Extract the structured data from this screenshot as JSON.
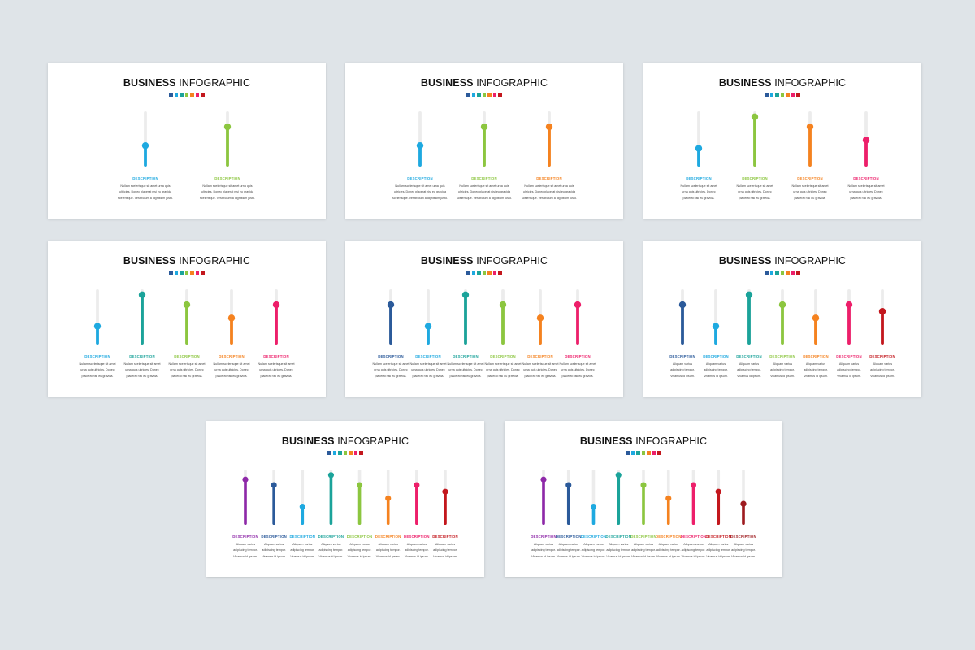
{
  "slide_title_bold": "BUSINESS",
  "slide_title_light": "INFOGRAPHIC",
  "description_label": "DESCRIPTION",
  "palette_swatches": [
    "#2b5a9a",
    "#1ea9e0",
    "#1ba39a",
    "#8cc63f",
    "#f5821f",
    "#ed1f6a",
    "#c3171d"
  ],
  "chart_data": [
    {
      "type": "bar",
      "categories": [
        "DESCRIPTION",
        "DESCRIPTION"
      ],
      "values": [
        38,
        72
      ],
      "colors": [
        "#1ea9e0",
        "#8cc63f"
      ],
      "ylim": [
        0,
        100
      ],
      "desc_lines": [
        "Nullam scelerisque sit amet urna quis",
        "ultricies. Donec placerat nisi eu gravida",
        "scelerisque. Vestibulum a dignissim justo."
      ]
    },
    {
      "type": "bar",
      "categories": [
        "DESCRIPTION",
        "DESCRIPTION",
        "DESCRIPTION"
      ],
      "values": [
        38,
        72,
        72
      ],
      "colors": [
        "#1ea9e0",
        "#8cc63f",
        "#f5821f"
      ],
      "ylim": [
        0,
        100
      ],
      "desc_lines": [
        "Nullam scelerisque sit amet urna quis",
        "ultricies. Donec placerat nisi eu gravida",
        "scelerisque. Vestibulum a dignissim justo."
      ]
    },
    {
      "type": "bar",
      "categories": [
        "DESCRIPTION",
        "DESCRIPTION",
        "DESCRIPTION",
        "DESCRIPTION"
      ],
      "values": [
        33,
        90,
        72,
        48
      ],
      "colors": [
        "#1ea9e0",
        "#8cc63f",
        "#f5821f",
        "#ed1f6a"
      ],
      "ylim": [
        0,
        100
      ],
      "desc_lines": [
        "Nullam scelerisque sit amet",
        "urna quis ultricies. Donec",
        "placerat nisi eu gravida."
      ]
    },
    {
      "type": "bar",
      "categories": [
        "DESCRIPTION",
        "DESCRIPTION",
        "DESCRIPTION",
        "DESCRIPTION",
        "DESCRIPTION"
      ],
      "values": [
        33,
        90,
        72,
        48,
        72
      ],
      "colors": [
        "#1ea9e0",
        "#1ba39a",
        "#8cc63f",
        "#f5821f",
        "#ed1f6a"
      ],
      "ylim": [
        0,
        100
      ],
      "desc_lines": [
        "Nullam scelerisque sit amet",
        "urna quis ultricies. Donec",
        "placerat nisi eu gravida."
      ]
    },
    {
      "type": "bar",
      "categories": [
        "DESCRIPTION",
        "DESCRIPTION",
        "DESCRIPTION",
        "DESCRIPTION",
        "DESCRIPTION",
        "DESCRIPTION"
      ],
      "values": [
        72,
        33,
        90,
        72,
        48,
        72
      ],
      "colors": [
        "#2b5a9a",
        "#1ea9e0",
        "#1ba39a",
        "#8cc63f",
        "#f5821f",
        "#ed1f6a"
      ],
      "ylim": [
        0,
        100
      ],
      "desc_lines": [
        "Nullam scelerisque sit amet",
        "urna quis ultricies. Donec",
        "placerat nisi eu gravida."
      ]
    },
    {
      "type": "bar",
      "categories": [
        "DESCRIPTION",
        "DESCRIPTION",
        "DESCRIPTION",
        "DESCRIPTION",
        "DESCRIPTION",
        "DESCRIPTION",
        "DESCRIPTION"
      ],
      "values": [
        72,
        33,
        90,
        72,
        48,
        72,
        60
      ],
      "colors": [
        "#2b5a9a",
        "#1ea9e0",
        "#1ba39a",
        "#8cc63f",
        "#f5821f",
        "#ed1f6a",
        "#c3171d"
      ],
      "ylim": [
        0,
        100
      ],
      "desc_lines": [
        "Aliquam varius",
        "adipiscing tempor.",
        "Vivamus id ipsum."
      ]
    },
    {
      "type": "bar",
      "categories": [
        "DESCRIPTION",
        "DESCRIPTION",
        "DESCRIPTION",
        "DESCRIPTION",
        "DESCRIPTION",
        "DESCRIPTION",
        "DESCRIPTION",
        "DESCRIPTION"
      ],
      "values": [
        82,
        72,
        33,
        90,
        72,
        48,
        72,
        60
      ],
      "colors": [
        "#8e28a8",
        "#2b5a9a",
        "#1ea9e0",
        "#1ba39a",
        "#8cc63f",
        "#f5821f",
        "#ed1f6a",
        "#c3171d"
      ],
      "ylim": [
        0,
        100
      ],
      "desc_lines": [
        "Aliquam varius",
        "adipiscing tempor.",
        "Vivamus id ipsum."
      ]
    },
    {
      "type": "bar",
      "categories": [
        "DESCRIPTION",
        "DESCRIPTION",
        "DESCRIPTION",
        "DESCRIPTION",
        "DESCRIPTION",
        "DESCRIPTION",
        "DESCRIPTION",
        "DESCRIPTION",
        "DESCRIPTION"
      ],
      "values": [
        82,
        72,
        33,
        90,
        72,
        48,
        72,
        60,
        38
      ],
      "colors": [
        "#8e28a8",
        "#2b5a9a",
        "#1ea9e0",
        "#1ba39a",
        "#8cc63f",
        "#f5821f",
        "#ed1f6a",
        "#c3171d",
        "#9e1b1f"
      ],
      "ylim": [
        0,
        100
      ],
      "desc_lines": [
        "Aliquam varius",
        "adipiscing tempor.",
        "Vivamus id ipsum."
      ]
    }
  ]
}
